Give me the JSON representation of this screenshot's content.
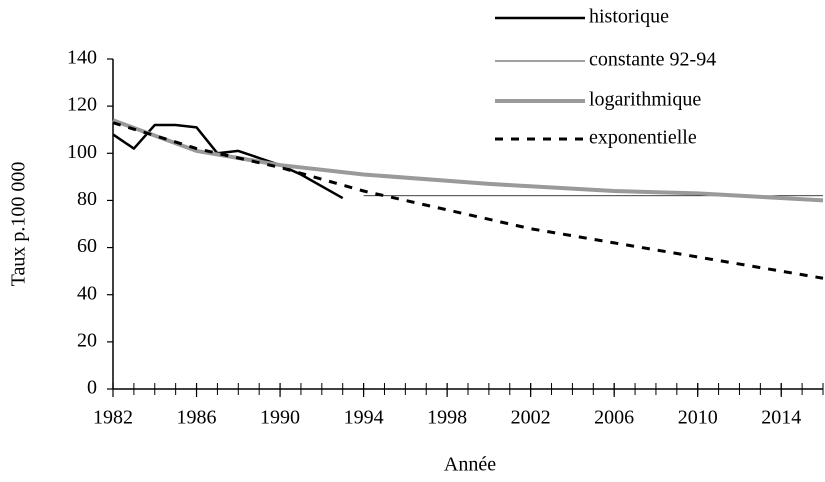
{
  "chart_data": {
    "type": "line",
    "xlabel": "Année",
    "ylabel": "Taux p.100 000",
    "xlim": [
      1982,
      2016
    ],
    "xticks": [
      1982,
      1986,
      1990,
      1994,
      1998,
      2002,
      2006,
      2010,
      2014
    ],
    "x_minor_step": 1,
    "ylim": [
      0,
      140
    ],
    "yticks": [
      0,
      20,
      40,
      60,
      80,
      100,
      120,
      140
    ],
    "legend": "top-right",
    "series": [
      {
        "name": "historique",
        "color": "#000000",
        "width": 2.5,
        "dash": "none",
        "x": [
          1982,
          1983,
          1984,
          1985,
          1986,
          1987,
          1988,
          1989,
          1990,
          1991,
          1992,
          1993
        ],
        "values": [
          108,
          102,
          112,
          112,
          111,
          100,
          101,
          98,
          95,
          91,
          86,
          81
        ]
      },
      {
        "name": "constante 92-94",
        "color": "#000000",
        "width": 0.8,
        "dash": "none",
        "x": [
          1994,
          2016
        ],
        "values": [
          82,
          82
        ]
      },
      {
        "name": "logarithmique",
        "color": "#9a9a9a",
        "width": 4,
        "dash": "none",
        "x": [
          1982,
          1986,
          1990,
          1994,
          2000,
          2006,
          2010,
          2016
        ],
        "values": [
          114,
          101,
          95,
          91,
          87,
          84,
          83,
          80
        ]
      },
      {
        "name": "exponentielle",
        "color": "#000000",
        "width": 3,
        "dash": "8 8",
        "x": [
          1982,
          1986,
          1990,
          1994,
          1998,
          2002,
          2006,
          2010,
          2014,
          2016
        ],
        "values": [
          113,
          102,
          94,
          84,
          76,
          68,
          62,
          56,
          50,
          47
        ]
      }
    ]
  }
}
